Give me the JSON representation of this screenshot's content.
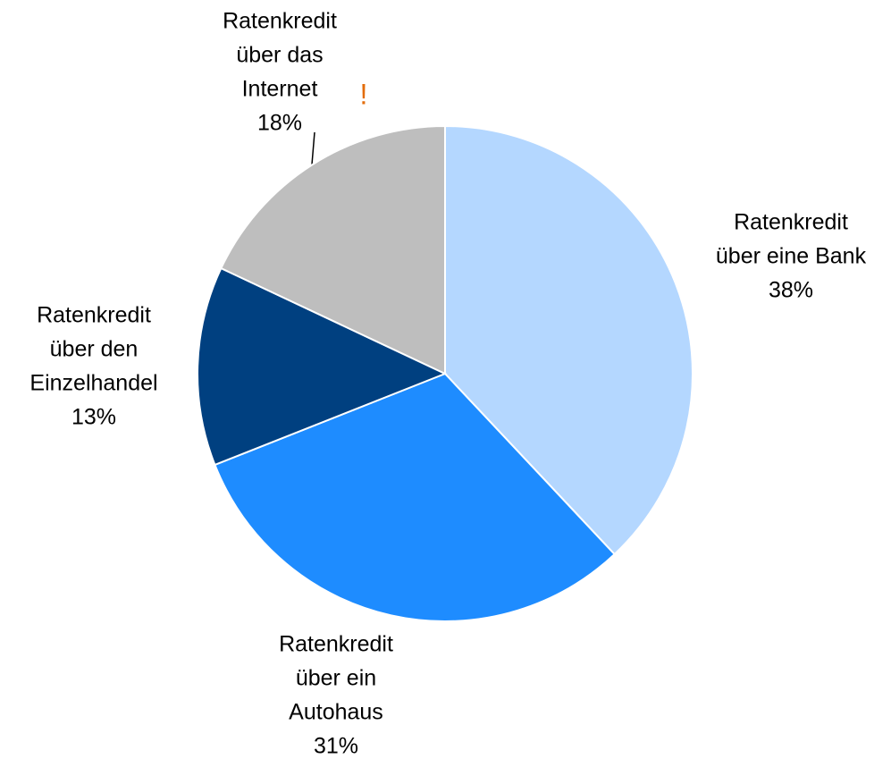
{
  "chart_data": {
    "type": "pie",
    "categories": [
      [
        "Ratenkredit",
        "über eine Bank"
      ],
      [
        "Ratenkredit",
        "über ein",
        "Autohaus"
      ],
      [
        "Ratenkredit",
        "über den",
        "Einzelhandel"
      ],
      [
        "Ratenkredit",
        "über das",
        "Internet"
      ]
    ],
    "values": [
      38,
      31,
      13,
      18
    ],
    "value_labels": [
      "38%",
      "31%",
      "13%",
      "18%"
    ],
    "colors": [
      "#b4d7ff",
      "#1e8cff",
      "#004080",
      "#bebebe"
    ],
    "annotation": "!"
  }
}
